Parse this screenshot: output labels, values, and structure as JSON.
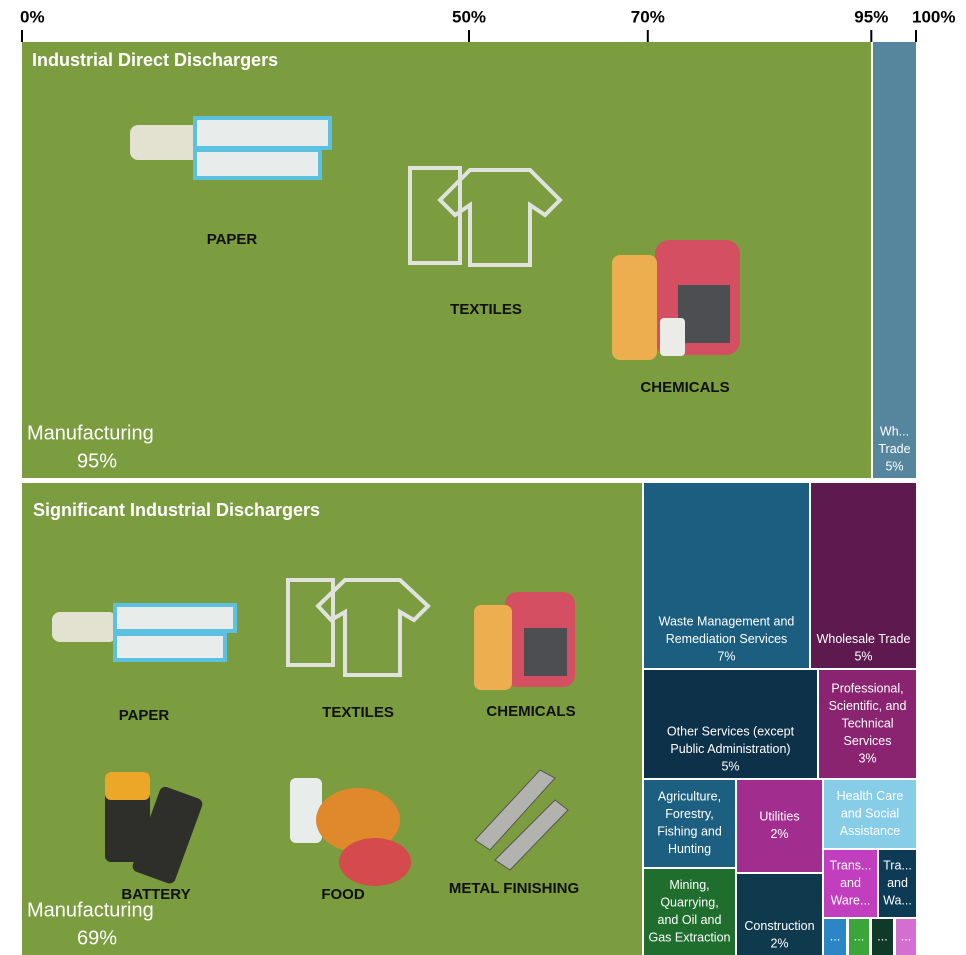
{
  "chart_data": {
    "type": "treemap",
    "xlim": [
      0,
      100
    ],
    "xticks": [
      {
        "value": 0,
        "label": "0%"
      },
      {
        "value": 50,
        "label": "50%"
      },
      {
        "value": 70,
        "label": "70%"
      },
      {
        "value": 95,
        "label": "95%"
      },
      {
        "value": 100,
        "label": "100%"
      }
    ],
    "panels": [
      {
        "title": "Industrial Direct Dischargers",
        "icon_labels": [
          "PAPER",
          "TEXTILES",
          "CHEMICALS"
        ],
        "sectors": [
          {
            "label_lines": [
              "Manufacturing"
            ],
            "value": 95,
            "value_label": "95%",
            "color": "#7b9c3f"
          },
          {
            "label_lines": [
              "Wh...",
              "Trade"
            ],
            "value": 5,
            "value_label": "5%",
            "color": "#55869e"
          }
        ]
      },
      {
        "title": "Significant Industrial Dischargers",
        "icon_labels": [
          "PAPER",
          "TEXTILES",
          "CHEMICALS",
          "BATTERY",
          "FOOD",
          "METAL FINISHING"
        ],
        "sectors": [
          {
            "label_lines": [
              "Manufacturing"
            ],
            "value": 69,
            "value_label": "69%",
            "color": "#7b9c3f"
          },
          {
            "label_lines": [
              "Waste Management and",
              "Remediation Services"
            ],
            "value": 7,
            "value_label": "7%",
            "color": "#1b5e80"
          },
          {
            "label_lines": [
              "Wholesale Trade"
            ],
            "value": 5,
            "value_label": "5%",
            "color": "#5e1a4f"
          },
          {
            "label_lines": [
              "Other Services (except",
              "Public Administration)"
            ],
            "value": 5,
            "value_label": "5%",
            "color": "#0d3148"
          },
          {
            "label_lines": [
              "Professional,",
              "Scientific, and",
              "Technical",
              "Services"
            ],
            "value": 3,
            "value_label": "3%",
            "color": "#8a2470"
          },
          {
            "label_lines": [
              "Agriculture,",
              "Forestry,",
              "Fishing and",
              "Hunting"
            ],
            "value": 2,
            "color": "#1d5f80"
          },
          {
            "label_lines": [
              "Utilities"
            ],
            "value": 2,
            "value_label": "2%",
            "color": "#a12e8e"
          },
          {
            "label_lines": [
              "Health Care",
              "and Social",
              "Assistance"
            ],
            "value": 1,
            "color": "#87cde8"
          },
          {
            "label_lines": [
              "Mining,",
              "Quarrying,",
              "and Oil and",
              "Gas Extraction"
            ],
            "value": 2,
            "color": "#1f6e2e"
          },
          {
            "label_lines": [
              "Construction"
            ],
            "value": 2,
            "value_label": "2%",
            "color": "#0f3a4e"
          },
          {
            "label_lines": [
              "Trans...",
              "and",
              "Ware..."
            ],
            "value": 1,
            "color": "#c13fbf"
          },
          {
            "label_lines": [
              "Tra...",
              "and",
              "Wa..."
            ],
            "value": 0.6,
            "color": "#0d3a55"
          },
          {
            "label_lines": [
              "..."
            ],
            "value": 0.3,
            "color": "#2a86c4"
          },
          {
            "label_lines": [
              "..."
            ],
            "value": 0.3,
            "color": "#3aa63a"
          },
          {
            "label_lines": [
              "..."
            ],
            "value": 0.3,
            "color": "#0f3a2a"
          },
          {
            "label_lines": [
              "..."
            ],
            "value": 0.3,
            "color": "#d46fd1"
          }
        ]
      }
    ]
  }
}
